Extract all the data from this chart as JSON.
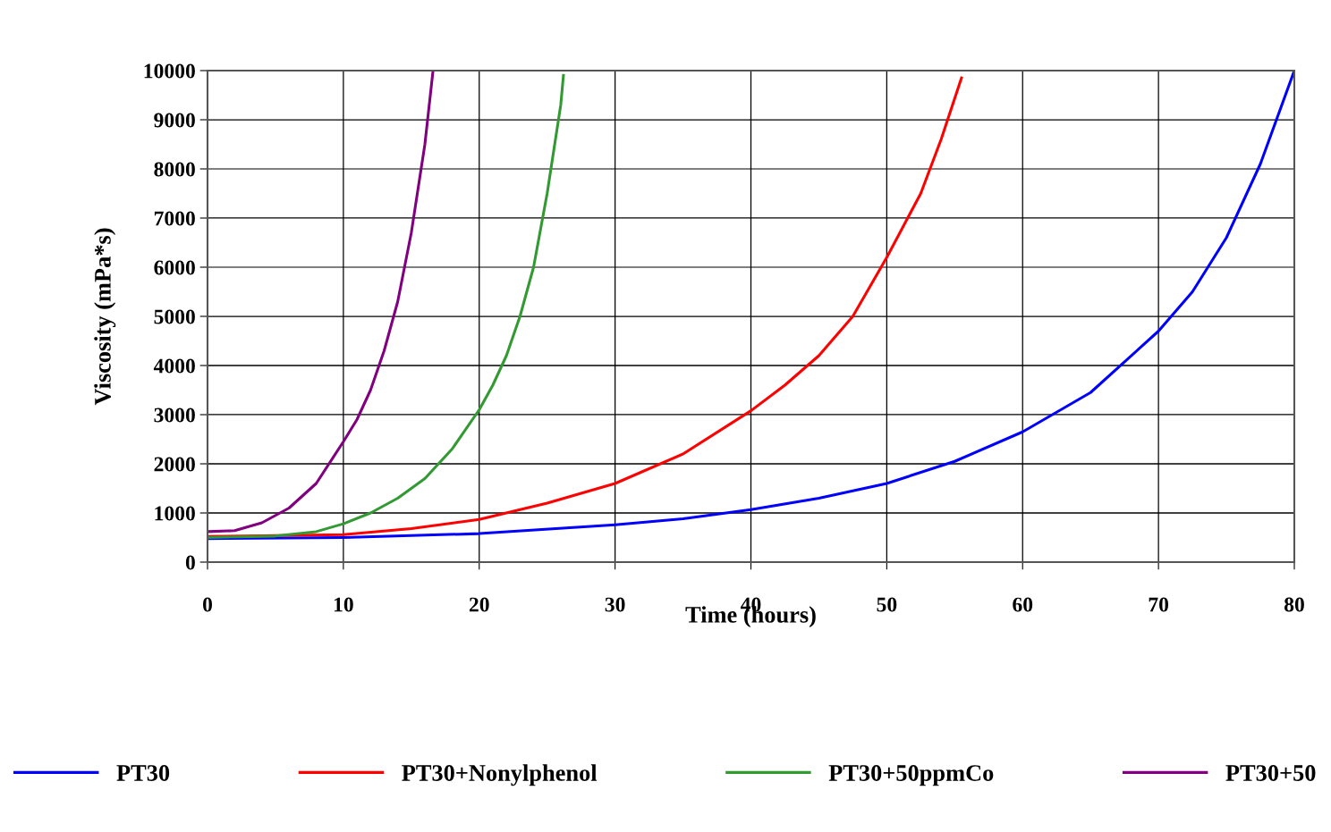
{
  "chart_data": {
    "type": "line",
    "xlabel": "Time (hours)",
    "ylabel": "Viscosity (mPa*s)",
    "xlim": [
      0,
      80
    ],
    "ylim": [
      0,
      10000
    ],
    "xticks": [
      0,
      10,
      20,
      30,
      40,
      50,
      60,
      70,
      80
    ],
    "yticks": [
      0,
      1000,
      2000,
      3000,
      4000,
      5000,
      6000,
      7000,
      8000,
      9000,
      10000
    ],
    "grid": true,
    "legend": "bottom",
    "marker": "none",
    "line_style": "solid",
    "series": [
      {
        "name": "PT30",
        "color": "#0000ff",
        "x": [
          0,
          10,
          20,
          30,
          35,
          40,
          45,
          50,
          55,
          60,
          65,
          70,
          72.5,
          75,
          77.5,
          80
        ],
        "values": [
          480,
          500,
          580,
          760,
          880,
          1070,
          1300,
          1600,
          2050,
          2650,
          3450,
          4700,
          5500,
          6600,
          8100,
          10000
        ]
      },
      {
        "name": "PT30+Nonylphenol",
        "color": "#ff0000",
        "x": [
          0,
          10,
          15,
          20,
          25,
          30,
          35,
          40,
          42.5,
          45,
          47.5,
          50,
          52.5,
          54,
          55.5
        ],
        "values": [
          520,
          560,
          680,
          870,
          1200,
          1600,
          2200,
          3080,
          3600,
          4200,
          5000,
          6200,
          7500,
          8600,
          9850
        ]
      },
      {
        "name": "PT30+50ppmCo",
        "color": "#339933",
        "x": [
          0,
          5,
          8,
          10,
          12,
          14,
          16,
          18,
          20,
          21,
          22,
          23,
          24,
          25,
          26,
          26.2
        ],
        "values": [
          500,
          530,
          620,
          780,
          1000,
          1300,
          1700,
          2300,
          3100,
          3600,
          4200,
          5000,
          6000,
          7500,
          9300,
          9900
        ]
      },
      {
        "name": "PT30+50",
        "color": "#800080",
        "x": [
          0,
          2,
          4,
          6,
          8,
          10,
          11,
          12,
          13,
          14,
          15,
          16,
          16.6
        ],
        "values": [
          620,
          640,
          800,
          1100,
          1600,
          2450,
          2900,
          3500,
          4300,
          5300,
          6700,
          8500,
          10000
        ]
      }
    ]
  }
}
